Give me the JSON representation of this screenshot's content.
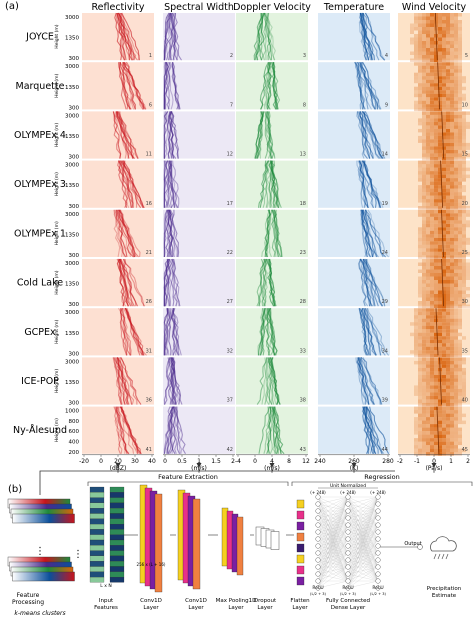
{
  "panel_a": {
    "label": "(a)",
    "columns": [
      {
        "title": "Reflectivity",
        "unit": "(dBZ)",
        "ticks": [
          "-20",
          "0",
          "20",
          "30",
          "40"
        ],
        "color": "#c8141c",
        "light": "#fde0d2"
      },
      {
        "title": "Spectral Width",
        "unit": "(m/s)",
        "ticks": [
          "0",
          "0.5",
          "1",
          "1.5",
          "2"
        ],
        "color": "#4a2a8c",
        "light": "#ece8f5"
      },
      {
        "title": "Doppler Velocity",
        "unit": "(m/s)",
        "ticks": [
          "-4",
          "0",
          "4",
          "8",
          "12"
        ],
        "color": "#1e8a3c",
        "light": "#e3f3df"
      },
      {
        "title": "Temperature",
        "unit": "(K)",
        "ticks": [
          "240",
          "260",
          "280"
        ],
        "color": "#0b4f9a",
        "light": "#dceaf7"
      },
      {
        "title": "Wind Velocity",
        "unit": "(Pa/s)",
        "ticks": [
          "-2",
          "-1",
          "0",
          "1",
          "2"
        ],
        "color": "#d9620c",
        "light": "#fde3c8"
      }
    ],
    "rows": [
      {
        "site": "JOYCE",
        "nums": [
          "1",
          "2",
          "3",
          "4",
          "5"
        ]
      },
      {
        "site": "Marquette",
        "nums": [
          "6",
          "7",
          "8",
          "9",
          "10"
        ]
      },
      {
        "site": "OLYMPEx 4",
        "nums": [
          "11",
          "12",
          "13",
          "14",
          "15"
        ]
      },
      {
        "site": "OLYMPEx 3",
        "nums": [
          "16",
          "17",
          "18",
          "19",
          "20"
        ]
      },
      {
        "site": "OLYMPEx 1",
        "nums": [
          "21",
          "22",
          "23",
          "24",
          "25"
        ]
      },
      {
        "site": "Cold Lake",
        "nums": [
          "26",
          "27",
          "28",
          "29",
          "30"
        ]
      },
      {
        "site": "GCPEx",
        "nums": [
          "31",
          "32",
          "33",
          "34",
          "35"
        ]
      },
      {
        "site": "ICE-POP",
        "nums": [
          "36",
          "37",
          "38",
          "39",
          "40"
        ]
      },
      {
        "site": "Ny-Ålesund",
        "nums": [
          "41",
          "42",
          "43",
          "44",
          "45"
        ]
      }
    ],
    "ylabel": "Height (m)",
    "yticks": [
      "3000",
      "1350",
      "300"
    ],
    "yticks_last": [
      "1000",
      "800",
      "600",
      "400",
      "200"
    ]
  },
  "panel_b": {
    "label": "(b)",
    "feature_extraction": "Feature Extraction",
    "regression": "Regression",
    "unit_normalized": "Unit Normalized",
    "plus248": "(+ 248)",
    "relu": "ReLU",
    "relu_sub": "(L/2 + 3)",
    "input_dim": "L x N",
    "conv_dim": "256 x (L + 16)",
    "output": "Output",
    "precip": "Precipitation\nEstimate",
    "feature_processing": "Feature\nProcessing",
    "kmeans": "k-means clusters",
    "layers": [
      "Input\nFeatures",
      "Conv1D\nLayer",
      "Conv1D\nLayer",
      "Max Pooling1D\nLayer",
      "Dropout\nLayer",
      "Flatten\nLayer",
      "Fully Connected\nDense Layer"
    ]
  }
}
